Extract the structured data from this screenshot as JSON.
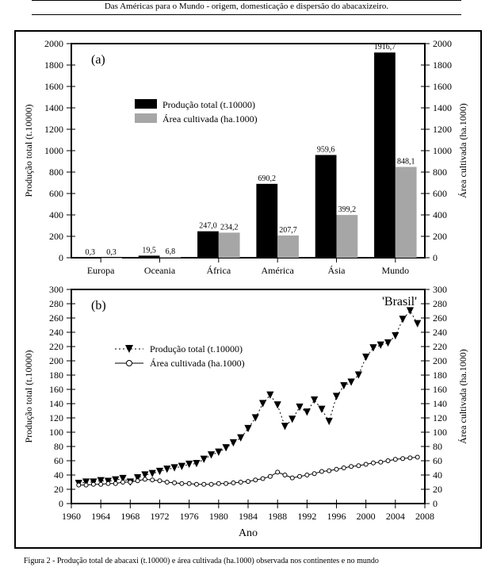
{
  "header": {
    "text": "Das Américas para o Mundo - origem, domesticação e dispersão do abacaxizeiro."
  },
  "footer": {
    "text": "Figura 2 - Produção total de abacaxi (t.10000) e área cultivada (ha.1000) observada nos continentes e no mundo"
  },
  "chartA": {
    "type": "bar",
    "panel_label": "(a)",
    "panel_fontsize": 16,
    "categories": [
      "Europa",
      "Oceania",
      "África",
      "América",
      "Ásia",
      "Mundo"
    ],
    "series": [
      {
        "name": "Produção total (t.10000)",
        "color": "#000000",
        "values": [
          0.3,
          19.5,
          247.0,
          690.2,
          959.6,
          1916.7
        ]
      },
      {
        "name": "Área cultivada (ha.1000)",
        "color": "#a6a6a6",
        "values": [
          0.3,
          6.8,
          234.2,
          207.7,
          399.2,
          848.1
        ]
      }
    ],
    "value_labels": [
      [
        "0,3",
        "0,3"
      ],
      [
        "19,5",
        "6,8"
      ],
      [
        "247,0",
        "234,2"
      ],
      [
        "690,2",
        "207,7"
      ],
      [
        "959,6",
        "399,2"
      ],
      [
        "1916,7",
        "848,1"
      ]
    ],
    "y_left_label": "Produção total (t.10000)",
    "y_right_label": "Área cultivada (ha.1000)",
    "ylim": [
      0,
      2000
    ],
    "ytick_step": 200,
    "label_fontsize": 12,
    "tick_fontsize": 12,
    "value_fontsize": 10,
    "bar_width": 0.36,
    "background_color": "#ffffff",
    "axis_color": "#000000"
  },
  "chartB": {
    "type": "line",
    "panel_label": "(b)",
    "panel_fontsize": 16,
    "title_right": "'Brasil'",
    "title_right_fontsize": 16,
    "x_label": "Ano",
    "y_left_label": "Produção total (t.10000)",
    "y_right_label": "Área cultivada (ha.1000)",
    "xlim": [
      1960,
      2008
    ],
    "xtick_step": 4,
    "ylim": [
      0,
      300
    ],
    "ytick_step": 20,
    "label_fontsize": 12,
    "tick_fontsize": 12,
    "series": [
      {
        "name": "Produção total (t.10000)",
        "marker": "triangle-down",
        "marker_fill": "#000000",
        "marker_size": 6,
        "line_style": "dotted",
        "line_color": "#000000",
        "line_width": 1,
        "x": [
          1961,
          1962,
          1963,
          1964,
          1965,
          1966,
          1967,
          1968,
          1969,
          1970,
          1971,
          1972,
          1973,
          1974,
          1975,
          1976,
          1977,
          1978,
          1979,
          1980,
          1981,
          1982,
          1983,
          1984,
          1985,
          1986,
          1987,
          1988,
          1989,
          1990,
          1991,
          1992,
          1993,
          1994,
          1995,
          1996,
          1997,
          1998,
          1999,
          2000,
          2001,
          2002,
          2003,
          2004,
          2005,
          2006,
          2007
        ],
        "y": [
          28,
          30,
          30,
          32,
          31,
          33,
          35,
          30,
          36,
          40,
          42,
          45,
          48,
          50,
          52,
          55,
          56,
          62,
          68,
          72,
          78,
          85,
          92,
          105,
          120,
          140,
          152,
          138,
          108,
          118,
          135,
          128,
          145,
          132,
          115,
          150,
          165,
          170,
          180,
          205,
          218,
          222,
          225,
          235,
          258,
          270,
          252
        ]
      },
      {
        "name": "Área cultivada (ha.1000)",
        "marker": "circle",
        "marker_fill": "#ffffff",
        "marker_stroke": "#000000",
        "marker_size": 5,
        "line_style": "solid",
        "line_color": "#000000",
        "line_width": 1,
        "x": [
          1961,
          1962,
          1963,
          1964,
          1965,
          1966,
          1967,
          1968,
          1969,
          1970,
          1971,
          1972,
          1973,
          1974,
          1975,
          1976,
          1977,
          1978,
          1979,
          1980,
          1981,
          1982,
          1983,
          1984,
          1985,
          1986,
          1987,
          1988,
          1989,
          1990,
          1991,
          1992,
          1993,
          1994,
          1995,
          1996,
          1997,
          1998,
          1999,
          2000,
          2001,
          2002,
          2003,
          2004,
          2005,
          2006,
          2007
        ],
        "y": [
          26,
          26,
          27,
          27,
          28,
          28,
          30,
          30,
          32,
          34,
          33,
          32,
          30,
          29,
          28,
          28,
          27,
          27,
          27,
          28,
          28,
          29,
          30,
          31,
          33,
          35,
          38,
          44,
          40,
          36,
          38,
          40,
          42,
          45,
          46,
          48,
          50,
          52,
          53,
          55,
          57,
          58,
          60,
          62,
          63,
          64,
          65
        ]
      }
    ],
    "background_color": "#ffffff",
    "axis_color": "#000000"
  }
}
